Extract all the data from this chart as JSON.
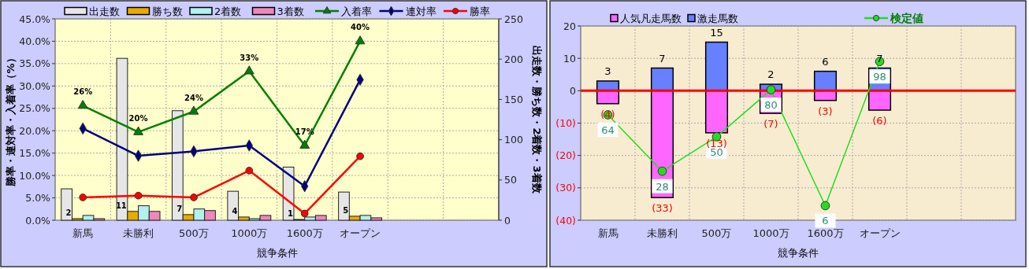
{
  "chart_data": [
    {
      "type": "bar",
      "xlabel": "競争条件",
      "ylabel": "勝率・連対率・入着率（%）",
      "y2label": "出走数・勝ち数・2着数・3着数",
      "categories": [
        "新馬",
        "未勝利",
        "500万",
        "1000万",
        "1600万",
        "オープン",
        null,
        null
      ],
      "ylim": [
        0,
        45
      ],
      "yticks": [
        {
          "value": 0,
          "label": "0.0%"
        },
        {
          "value": 5,
          "label": "5.0%"
        },
        {
          "value": 10,
          "label": "10.0%"
        },
        {
          "value": 15,
          "label": "15.0%"
        },
        {
          "value": 20,
          "label": "20.0%"
        },
        {
          "value": 25,
          "label": "25.0%"
        },
        {
          "value": 30,
          "label": "30.0%"
        },
        {
          "value": 35,
          "label": "35.0%"
        },
        {
          "value": 40,
          "label": "40.0%"
        },
        {
          "value": 45,
          "label": "45.0%"
        }
      ],
      "y2lim": [
        0,
        250
      ],
      "y2ticks": [
        0,
        50,
        100,
        150,
        200,
        250
      ],
      "grid": true,
      "legend": "top",
      "series": [
        {
          "name": "出走数",
          "type": "bar",
          "axis": "y2",
          "color": "#e6e6e6",
          "values": [
            39,
            201,
            136,
            36,
            66,
            35,
            null,
            null
          ]
        },
        {
          "name": "勝ち数",
          "type": "bar",
          "axis": "y2",
          "color": "#e6ac00",
          "values": [
            2,
            11,
            7,
            4,
            1,
            5,
            null,
            null
          ],
          "value_labels": [
            "2",
            "11",
            "7",
            "4",
            "1",
            "5",
            null,
            null
          ]
        },
        {
          "name": "2着数",
          "type": "bar",
          "axis": "y2",
          "color": "#b3f0f0",
          "values": [
            6,
            18,
            14,
            2,
            4,
            6,
            null,
            null
          ]
        },
        {
          "name": "3着数",
          "type": "bar",
          "axis": "y2",
          "color": "#ee88bb",
          "values": [
            2,
            11,
            12,
            6,
            6,
            3,
            null,
            null
          ]
        },
        {
          "name": "入着率",
          "type": "line",
          "color": "#008000",
          "marker": "triangle",
          "values": [
            25.6,
            19.7,
            24.3,
            33.3,
            16.7,
            40,
            null,
            null
          ],
          "value_labels": [
            "26%",
            "20%",
            "24%",
            "33%",
            "17%",
            "40%",
            null,
            null
          ]
        },
        {
          "name": "連対率",
          "type": "line",
          "color": "#000080",
          "marker": "diamond",
          "values": [
            20.5,
            14.4,
            15.4,
            16.7,
            7.6,
            31.4,
            null,
            null
          ]
        },
        {
          "name": "勝率",
          "type": "line",
          "color": "#ff0000",
          "marker": "circle",
          "values": [
            5.1,
            5.5,
            5.1,
            11.1,
            1.5,
            14.3,
            null,
            null
          ]
        }
      ]
    },
    {
      "type": "bar",
      "xlabel": "競争条件",
      "stacked": true,
      "categories": [
        "新馬",
        "未勝利",
        "500万",
        "1000万",
        "1600万",
        "オープン",
        null,
        null
      ],
      "ylim": [
        -40,
        20
      ],
      "yticks": [
        {
          "value": -40,
          "label": "(40)"
        },
        {
          "value": -30,
          "label": "(30)"
        },
        {
          "value": -20,
          "label": "(20)"
        },
        {
          "value": -10,
          "label": "(10)"
        },
        0,
        10,
        20
      ],
      "grid": true,
      "legend": "top",
      "y2lim": [
        -3.3,
        120.7
      ],
      "ref_lines": [
        {
          "axis": "y",
          "value": 0,
          "color": "#ff0000"
        }
      ],
      "series": [
        {
          "name": "人気凡走馬数",
          "type": "bar",
          "color": "#ff66ff",
          "values": [
            -4,
            -33,
            -13,
            -7,
            -3,
            -6,
            null,
            null
          ],
          "value_labels": [
            "(4)",
            "(33)",
            "(13)",
            "(7)",
            "(3)",
            "(6)",
            null,
            null
          ]
        },
        {
          "name": "激走馬数",
          "type": "bar",
          "color": "#6680ff",
          "values": [
            3,
            7,
            15,
            2,
            6,
            7,
            null,
            null
          ],
          "value_labels": [
            "3",
            "7",
            "15",
            "2",
            "6",
            "7",
            null,
            null
          ]
        },
        {
          "name": "検定値",
          "type": "line",
          "axis": "y2",
          "color": "#22dd22",
          "marker": "circle",
          "values": [
            64,
            28,
            50,
            80,
            6,
            98,
            null,
            null
          ],
          "value_labels": [
            "64",
            "28",
            "50",
            "80",
            "6",
            "98",
            null,
            null
          ]
        }
      ]
    }
  ]
}
